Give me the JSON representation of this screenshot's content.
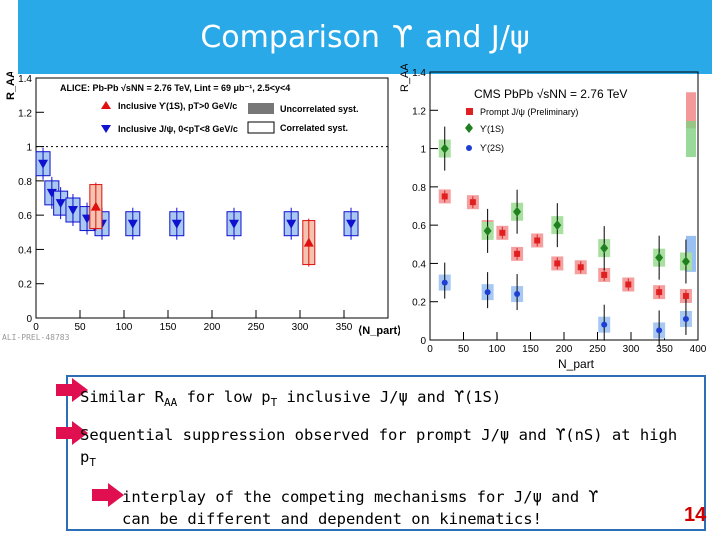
{
  "slide": {
    "title_pre": "Comparison",
    "title_sym1": "ϒ",
    "title_mid": "and J/",
    "title_sym2": "ψ",
    "page_number": "14"
  },
  "bullets": {
    "b1_pre": "Similar R",
    "b1_sub": "AA",
    "b1_mid": " for low p",
    "b1_sub2": "T",
    "b1_post": " inclusive J/ψ and ϒ(1S)",
    "b2_line1": "Sequential suppression observed for prompt J/ψ and ϒ(nS) at high",
    "b2_line2_pre": "p",
    "b2_line2_sub": "T",
    "b3_line1": "interplay of the competing mechanisms for J/ψ and ϒ",
    "b3_line2": "can be different and dependent on kinematics!"
  },
  "chart_data": [
    {
      "type": "scatter",
      "ylabel": "R_AA",
      "xlabel": "⟨N_part⟩",
      "xlim": [
        0,
        400
      ],
      "ylim": [
        0,
        1.4
      ],
      "xticks": [
        "0",
        "50",
        "100",
        "150",
        "200",
        "250",
        "300",
        "350"
      ],
      "yticks": [
        "0",
        "0.2",
        "0.4",
        "0.6",
        "0.8",
        "1",
        "1.2",
        "1.4"
      ],
      "legend_header": "ALICE: Pb-Pb √sNN = 2.76 TeV, Lint = 69 μb⁻¹, 2.5<y<4",
      "legend": [
        "Inclusive ϒ(1S), pT>0 GeV/c",
        "Inclusive J/ψ, 0<pT<8 GeV/c",
        "Uncorrelated syst.",
        "Correlated syst."
      ],
      "watermark": "ALI-PREL-48783",
      "series": [
        {
          "name": "Inclusive J/ψ, 0<pT<8 GeV/c",
          "color": "#1010d0",
          "x": [
            8,
            18,
            28,
            42,
            58,
            75,
            110,
            160,
            225,
            290,
            358
          ],
          "y": [
            0.9,
            0.73,
            0.67,
            0.63,
            0.58,
            0.55,
            0.55,
            0.55,
            0.55,
            0.55,
            0.55
          ]
        },
        {
          "name": "Inclusive ϒ(1S), pT>0 GeV/c",
          "color": "#e01010",
          "x": [
            68,
            310
          ],
          "y": [
            0.65,
            0.44
          ]
        }
      ]
    },
    {
      "type": "scatter",
      "ylabel": "R_AA",
      "xlabel": "N_part",
      "xlim": [
        0,
        400
      ],
      "ylim": [
        0,
        1.4
      ],
      "xticks": [
        "0",
        "50",
        "100",
        "150",
        "200",
        "250",
        "300",
        "350",
        "400"
      ],
      "yticks": [
        "0",
        "0.2",
        "0.4",
        "0.6",
        "0.8",
        "1",
        "1.2",
        "1.4"
      ],
      "legend_header": "CMS PbPb √sNN = 2.76 TeV",
      "legend": [
        "Prompt J/ψ (Preliminary)",
        "ϒ(1S)",
        "ϒ(2S)"
      ],
      "global_unc_right": [
        1.2,
        1.05,
        0.45
      ],
      "series": [
        {
          "name": "Prompt J/ψ (Preliminary)",
          "color": "#e02020",
          "x": [
            22,
            64,
            86,
            108,
            130,
            160,
            190,
            225,
            260,
            296,
            342,
            382
          ],
          "y": [
            0.75,
            0.72,
            0.59,
            0.56,
            0.45,
            0.52,
            0.4,
            0.38,
            0.34,
            0.29,
            0.25,
            0.23
          ]
        },
        {
          "name": "ϒ(1S)",
          "color": "#208020",
          "x": [
            22,
            86,
            130,
            190,
            260,
            342,
            382
          ],
          "y": [
            1.0,
            0.57,
            0.67,
            0.6,
            0.48,
            0.43,
            0.41
          ]
        },
        {
          "name": "ϒ(2S)",
          "color": "#1f3fd0",
          "x": [
            22,
            86,
            130,
            260,
            342,
            382
          ],
          "y": [
            0.3,
            0.25,
            0.24,
            0.08,
            0.05,
            0.11
          ]
        }
      ]
    }
  ]
}
